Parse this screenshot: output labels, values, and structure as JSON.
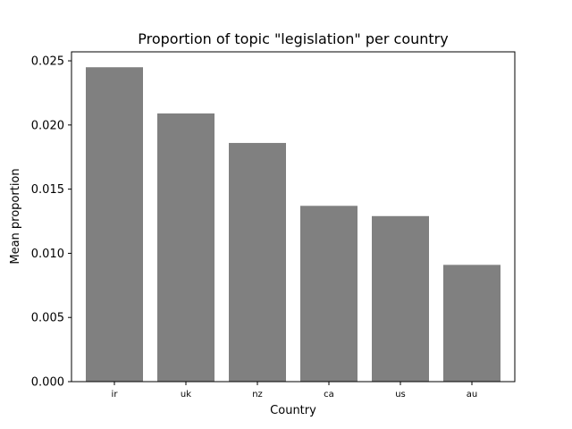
{
  "chart_data": {
    "type": "bar",
    "title": "Proportion of topic \"legislation\" per country",
    "xlabel": "Country",
    "ylabel": "Mean proportion",
    "categories": [
      "ir",
      "uk",
      "nz",
      "ca",
      "us",
      "au"
    ],
    "values": [
      0.0245,
      0.0209,
      0.0186,
      0.0137,
      0.0129,
      0.0091
    ],
    "ylim": [
      0,
      0.0257
    ],
    "yticks": [
      "0.000",
      "0.005",
      "0.010",
      "0.015",
      "0.020",
      "0.025"
    ],
    "ytick_values": [
      0,
      0.005,
      0.01,
      0.015,
      0.02,
      0.025
    ],
    "bar_color": "#808080",
    "grid": false,
    "legend": "none"
  }
}
